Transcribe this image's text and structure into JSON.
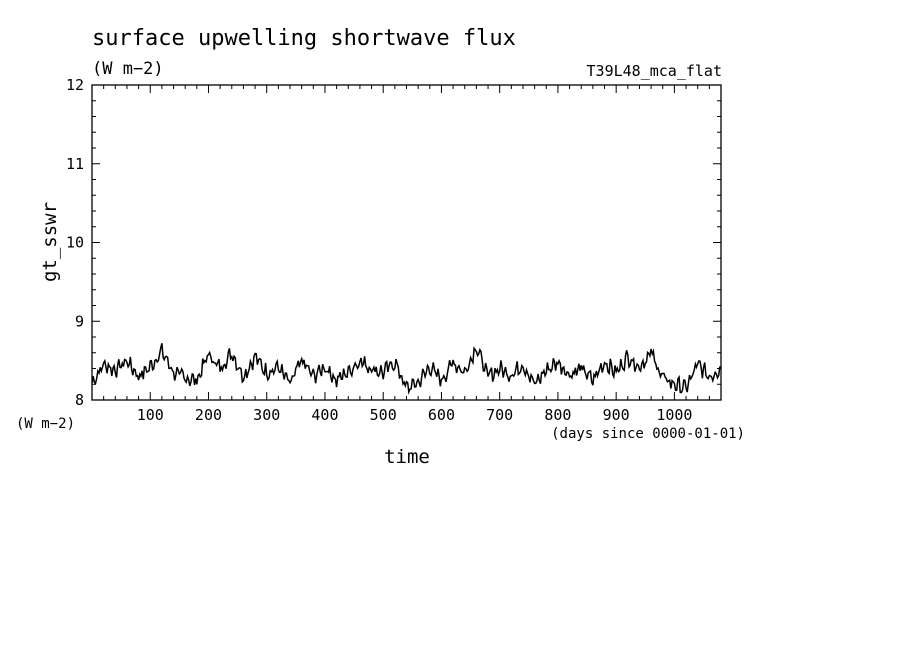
{
  "chart_data": {
    "type": "line",
    "title": "surface upwelling shortwave flux",
    "units": "(W m−2)",
    "run_label": "T39L48_mca_flat",
    "xlabel": "time",
    "x_units": "(days since 0000-01-01)",
    "ylabel": "gt_sswr",
    "y_units": "(W m−2)",
    "xlim": [
      0,
      1080
    ],
    "ylim": [
      8,
      12
    ],
    "x_ticks": [
      100,
      200,
      300,
      400,
      500,
      600,
      700,
      800,
      900,
      1000
    ],
    "y_ticks": [
      8,
      9,
      10,
      11,
      12
    ],
    "grid": false,
    "series": [
      {
        "x": [
          0,
          20,
          40,
          60,
          80,
          100,
          120,
          140,
          160,
          180,
          200,
          220,
          240,
          260,
          280,
          300,
          320,
          340,
          360,
          380,
          400,
          420,
          440,
          460,
          480,
          500,
          520,
          540,
          560,
          580,
          600,
          620,
          640,
          660,
          680,
          700,
          720,
          740,
          760,
          780,
          800,
          820,
          840,
          860,
          880,
          900,
          920,
          940,
          960,
          980,
          1000,
          1020,
          1040,
          1060,
          1080
        ],
        "y": [
          8.22,
          8.45,
          8.38,
          8.5,
          8.3,
          8.42,
          8.62,
          8.35,
          8.28,
          8.25,
          8.58,
          8.4,
          8.6,
          8.3,
          8.55,
          8.35,
          8.42,
          8.2,
          8.5,
          8.3,
          8.42,
          8.25,
          8.36,
          8.5,
          8.4,
          8.35,
          8.48,
          8.15,
          8.22,
          8.42,
          8.25,
          8.48,
          8.35,
          8.68,
          8.3,
          8.4,
          8.32,
          8.45,
          8.2,
          8.38,
          8.48,
          8.32,
          8.4,
          8.25,
          8.48,
          8.35,
          8.55,
          8.42,
          8.6,
          8.28,
          8.2,
          8.15,
          8.45,
          8.3,
          8.4
        ]
      }
    ]
  }
}
